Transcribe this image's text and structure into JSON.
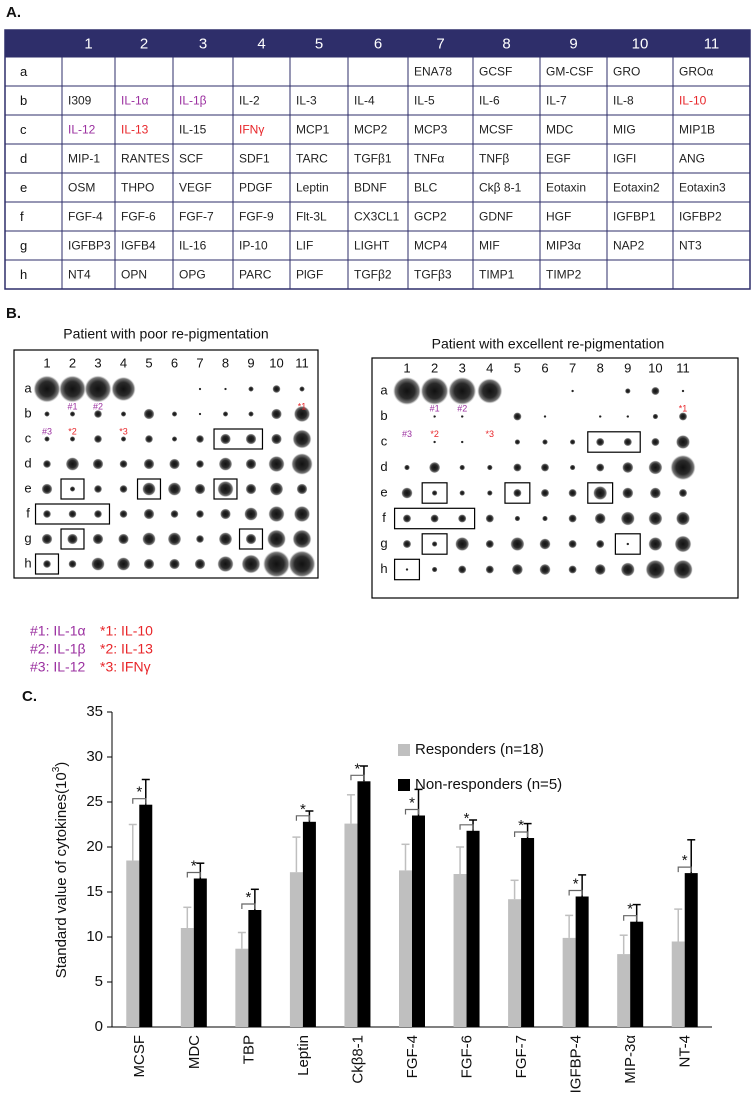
{
  "panel_a": {
    "label": "A.",
    "header": [
      "1",
      "2",
      "3",
      "4",
      "5",
      "6",
      "7",
      "8",
      "9",
      "10",
      "11"
    ],
    "rows": [
      {
        "label": "a",
        "cells": [
          null,
          null,
          null,
          null,
          null,
          null,
          "ENA78",
          "GCSF",
          "GM-CSF",
          "GRO",
          "GROα"
        ]
      },
      {
        "label": "b",
        "cells": [
          "I309",
          {
            "text": "IL-1α",
            "color": "#9b30a0"
          },
          {
            "text": "IL-1β",
            "color": "#9b30a0"
          },
          "IL-2",
          "IL-3",
          "IL-4",
          "IL-5",
          "IL-6",
          "IL-7",
          "IL-8",
          {
            "text": "IL-10",
            "color": "#e8262a"
          }
        ]
      },
      {
        "label": "c",
        "cells": [
          {
            "text": "IL-12",
            "color": "#9b30a0"
          },
          {
            "text": "IL-13",
            "color": "#e8262a"
          },
          "IL-15",
          {
            "text": "IFNγ",
            "color": "#e8262a"
          },
          "MCP1",
          "MCP2",
          "MCP3",
          "MCSF",
          "MDC",
          "MIG",
          "MIP1B"
        ]
      },
      {
        "label": "d",
        "cells": [
          "MIP-1",
          "RANTES",
          "SCF",
          "SDF1",
          "TARC",
          "TGFβ1",
          "TNFα",
          "TNFβ",
          "EGF",
          "IGFI",
          "ANG"
        ]
      },
      {
        "label": "e",
        "cells": [
          "OSM",
          "THPO",
          "VEGF",
          "PDGF",
          "Leptin",
          "BDNF",
          "BLC",
          "Ckβ 8-1",
          "Eotaxin",
          "Eotaxin2",
          "Eotaxin3"
        ]
      },
      {
        "label": "f",
        "cells": [
          "FGF-4",
          "FGF-6",
          "FGF-7",
          "FGF-9",
          "Flt-3L",
          "CX3CL1",
          "GCP2",
          "GDNF",
          "HGF",
          "IGFBP1",
          "IGFBP2"
        ]
      },
      {
        "label": "g",
        "cells": [
          "IGFBP3",
          "IGFB4",
          "IL-16",
          "IP-10",
          "LIF",
          "LIGHT",
          "MCP4",
          "MIF",
          "MIP3α",
          "NAP2",
          "NT3"
        ]
      },
      {
        "label": "h",
        "cells": [
          "NT4",
          "OPN",
          "OPG",
          "PARC",
          "PlGF",
          "TGFβ2",
          "TGFβ3",
          "TIMP1",
          "TIMP2",
          null,
          null
        ]
      }
    ]
  },
  "panel_b": {
    "label": "B.",
    "columns": [
      "1",
      "2",
      "3",
      "4",
      "5",
      "6",
      "7",
      "8",
      "9",
      "10",
      "11"
    ],
    "rows": [
      "a",
      "b",
      "c",
      "d",
      "e",
      "f",
      "g",
      "h"
    ],
    "annotations": [
      {
        "text": "#1",
        "color": "#9b30a0"
      },
      {
        "text": "#2",
        "color": "#9b30a0"
      },
      {
        "text": "*1",
        "color": "#e8262a"
      },
      {
        "text": "#3",
        "color": "#9b30a0"
      },
      {
        "text": "*2",
        "color": "#e8262a"
      },
      {
        "text": "*3",
        "color": "#e8262a"
      }
    ],
    "blots": [
      {
        "title": "Patient with poor re-pigmentation",
        "spots": [
          [
            10,
            10,
            10,
            9,
            0,
            0,
            1,
            1,
            2,
            3,
            2
          ],
          [
            2,
            2,
            3,
            2,
            4,
            2,
            1,
            2,
            2,
            4,
            6
          ],
          [
            2,
            2,
            3,
            2,
            3,
            2,
            3,
            4,
            4,
            4,
            7
          ],
          [
            3,
            5,
            4,
            3,
            4,
            4,
            3,
            5,
            4,
            6,
            8
          ],
          [
            4,
            2,
            3,
            3,
            5,
            5,
            4,
            6,
            4,
            5,
            4
          ],
          [
            3,
            3,
            3,
            3,
            4,
            3,
            3,
            4,
            5,
            6,
            6
          ],
          [
            4,
            4,
            4,
            4,
            5,
            5,
            3,
            5,
            4,
            7,
            7
          ],
          [
            3,
            3,
            5,
            5,
            4,
            4,
            4,
            6,
            7,
            10,
            10
          ]
        ]
      },
      {
        "title": "Patient with excellent re-pigmentation",
        "spots": [
          [
            10,
            10,
            10,
            9,
            0,
            0,
            1,
            0,
            2,
            3,
            1
          ],
          [
            0,
            1,
            1,
            0,
            3,
            1,
            0,
            1,
            1,
            2,
            3
          ],
          [
            0,
            1,
            1,
            0,
            2,
            2,
            2,
            3,
            3,
            3,
            5
          ],
          [
            2,
            4,
            2,
            2,
            3,
            3,
            2,
            3,
            4,
            5,
            9
          ],
          [
            4,
            2,
            2,
            2,
            3,
            3,
            3,
            5,
            4,
            4,
            3
          ],
          [
            3,
            3,
            3,
            3,
            2,
            2,
            3,
            4,
            5,
            5,
            5
          ],
          [
            3,
            2,
            5,
            3,
            5,
            4,
            3,
            3,
            1,
            5,
            6
          ],
          [
            1,
            2,
            3,
            3,
            4,
            4,
            3,
            4,
            5,
            7,
            7
          ]
        ]
      }
    ],
    "legend": [
      {
        "text": "#1: IL-1α",
        "color": "#9b30a0"
      },
      {
        "text": "*1: IL-10",
        "color": "#e8262a"
      },
      {
        "text": "#2: IL-1β",
        "color": "#9b30a0"
      },
      {
        "text": "*2: IL-13",
        "color": "#e8262a"
      },
      {
        "text": "#3: IL-12",
        "color": "#9b30a0"
      },
      {
        "text": "*3: IFNγ",
        "color": "#e8262a"
      }
    ]
  },
  "chart_data": {
    "type": "bar",
    "panel_label": "C.",
    "y_label": {
      "text": "Standard value of cytokines(10",
      "sup": "3",
      "suffix": ")"
    },
    "categories": [
      "MCSF",
      "MDC",
      "TBP",
      "Leptin",
      "Ckβ8-1",
      "FGF-4",
      "FGF-6",
      "FGF-7",
      "IGFBP-4",
      "MIP-3α",
      "NT-4"
    ],
    "series": [
      {
        "name": "Responders (n=18)",
        "color": "#bfbfbf",
        "values": [
          18.5,
          11,
          8.7,
          17.2,
          22.6,
          17.4,
          17,
          14.2,
          9.9,
          8.1,
          9.5
        ],
        "errors": [
          4,
          2.3,
          1.8,
          3.9,
          3.2,
          2.9,
          3,
          2.1,
          2.5,
          2.1,
          3.6
        ]
      },
      {
        "name": "Non-responders (n=5)",
        "color": "#000000",
        "values": [
          24.7,
          16.5,
          13,
          22.8,
          27.3,
          23.5,
          21.8,
          21,
          14.5,
          11.7,
          17.1
        ],
        "errors": [
          2.8,
          1.7,
          2.3,
          1.2,
          1.7,
          2.9,
          1.2,
          1.6,
          2.4,
          1.9,
          3.7
        ]
      }
    ],
    "significance": [
      "*",
      "*",
      "*",
      "*",
      "*",
      "*",
      "*",
      "*",
      "*",
      "*",
      "*"
    ],
    "ylim": [
      0,
      35
    ],
    "yticks": [
      0,
      5,
      10,
      15,
      20,
      25,
      30,
      35
    ]
  }
}
